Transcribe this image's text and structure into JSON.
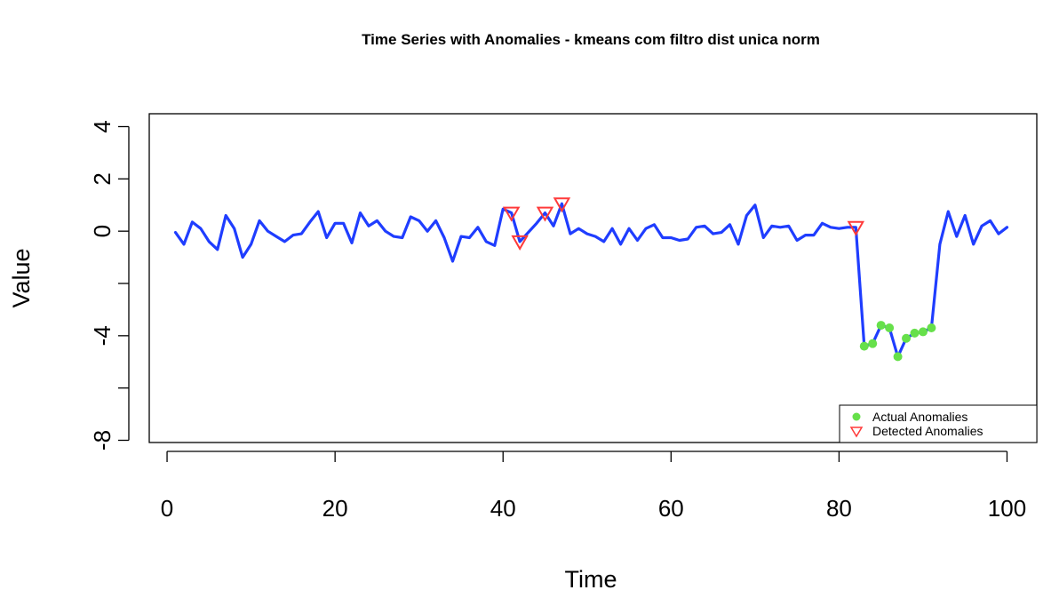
{
  "chart_data": {
    "type": "line",
    "title": "Time Series with Anomalies - kmeans com filtro dist unica norm",
    "xlabel": "Time",
    "ylabel": "Value",
    "xlim": [
      1,
      100
    ],
    "ylim": [
      -8,
      4
    ],
    "x_ticks": [
      0,
      20,
      40,
      60,
      80,
      100
    ],
    "y_ticks": [
      -8,
      -6,
      -4,
      -2,
      0,
      2,
      4
    ],
    "y_tick_labels": [
      "-8",
      "",
      "-4",
      "",
      "0",
      "2",
      "4"
    ],
    "legend_position": "bottom-right",
    "colors": {
      "series": "#1f3dff",
      "actual": "#66e04a",
      "detected": "#ff3a3a"
    },
    "series": {
      "x": [
        1,
        2,
        3,
        4,
        5,
        6,
        7,
        8,
        9,
        10,
        11,
        12,
        13,
        14,
        15,
        16,
        17,
        18,
        19,
        20,
        21,
        22,
        23,
        24,
        25,
        26,
        27,
        28,
        29,
        30,
        31,
        32,
        33,
        34,
        35,
        36,
        37,
        38,
        39,
        40,
        41,
        42,
        43,
        44,
        45,
        46,
        47,
        48,
        49,
        50,
        51,
        52,
        53,
        54,
        55,
        56,
        57,
        58,
        59,
        60,
        61,
        62,
        63,
        64,
        65,
        66,
        67,
        68,
        69,
        70,
        71,
        72,
        73,
        74,
        75,
        76,
        77,
        78,
        79,
        80,
        81,
        82,
        83,
        84,
        85,
        86,
        87,
        88,
        89,
        90,
        91,
        92,
        93,
        94,
        95,
        96,
        97,
        98,
        99,
        100
      ],
      "values": [
        -0.05,
        -0.5,
        0.35,
        0.1,
        -0.4,
        -0.7,
        0.6,
        0.1,
        -1.0,
        -0.5,
        0.4,
        0.0,
        -0.2,
        -0.4,
        -0.15,
        -0.1,
        0.35,
        0.75,
        -0.25,
        0.3,
        0.3,
        -0.45,
        0.7,
        0.2,
        0.4,
        0.0,
        -0.2,
        -0.25,
        0.55,
        0.4,
        0.0,
        0.4,
        -0.25,
        -1.15,
        -0.2,
        -0.25,
        0.15,
        -0.4,
        -0.55,
        0.85,
        0.7,
        -0.4,
        -0.05,
        0.3,
        0.7,
        0.2,
        1.05,
        -0.1,
        0.1,
        -0.1,
        -0.2,
        -0.4,
        0.1,
        -0.5,
        0.1,
        -0.35,
        0.1,
        0.25,
        -0.25,
        -0.25,
        -0.35,
        -0.3,
        0.15,
        0.2,
        -0.1,
        -0.05,
        0.25,
        -0.5,
        0.6,
        1.0,
        -0.25,
        0.2,
        0.15,
        0.2,
        -0.35,
        -0.15,
        -0.15,
        0.3,
        0.15,
        0.1,
        0.15,
        0.15,
        -4.4,
        -4.3,
        -3.6,
        -3.7,
        -4.8,
        -4.1,
        -3.9,
        -3.85,
        -3.7,
        -0.5,
        0.75,
        -0.2,
        0.6,
        -0.5,
        0.2,
        0.4,
        -0.1,
        0.15
      ]
    },
    "actual_anomalies": {
      "x": [
        83,
        84,
        85,
        86,
        87,
        88,
        89,
        90,
        91
      ],
      "y": [
        -4.4,
        -4.3,
        -3.6,
        -3.7,
        -4.8,
        -4.1,
        -3.9,
        -3.85,
        -3.7
      ]
    },
    "detected_anomalies": {
      "x": [
        41,
        42,
        45,
        47,
        82
      ],
      "y": [
        0.7,
        -0.4,
        0.7,
        1.05,
        0.15
      ]
    },
    "legend": [
      "Actual Anomalies",
      "Detected Anomalies"
    ]
  }
}
